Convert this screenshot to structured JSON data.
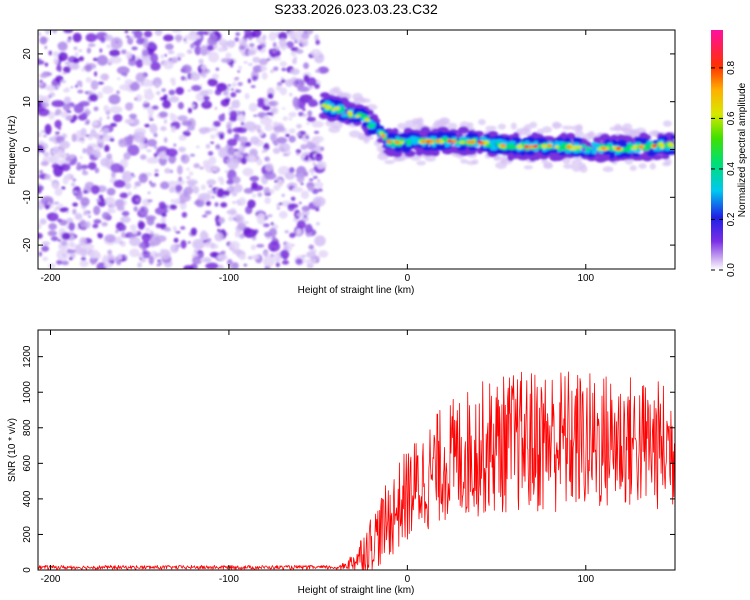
{
  "title": "S233.2026.023.03.23.C32",
  "chart_data": [
    {
      "type": "heatmap",
      "name": "spectrogram",
      "xlabel": "Height of straight line (km)",
      "ylabel": "Frequency (Hz)",
      "xlim": [
        -207,
        150
      ],
      "ylim": [
        -25,
        25
      ],
      "xticks": [
        -200,
        -100,
        0,
        100
      ],
      "xtick_labels": [
        "-200",
        "-100",
        "0",
        "100"
      ],
      "yticks": [
        -20,
        -10,
        0,
        10,
        20
      ],
      "ytick_labels": [
        "-20",
        "-10",
        "0",
        "10",
        "20"
      ],
      "noise_region": {
        "x": [
          -207,
          -47
        ],
        "y": [
          -25,
          25
        ]
      },
      "signal_track": {
        "x": [
          -47,
          -40,
          -32,
          -25,
          -20,
          -15,
          -10,
          0,
          20,
          40,
          60,
          80,
          100,
          120,
          140,
          150
        ],
        "y": [
          9,
          8.5,
          7.5,
          7,
          5,
          3.5,
          1.5,
          1.5,
          1.8,
          1.5,
          0.5,
          0.8,
          0.3,
          0.2,
          0.8,
          1.0
        ]
      },
      "colorbar": {
        "label": "Normalized spectral amplitude",
        "range": [
          0,
          0.95
        ],
        "ticks": [
          0.0,
          0.2,
          0.4,
          0.6,
          0.8
        ],
        "tick_labels": [
          "0.0",
          "0.2",
          "0.4",
          "0.6",
          "0.8"
        ]
      }
    },
    {
      "type": "line",
      "name": "snr",
      "xlabel": "Height of straight line (km)",
      "ylabel": "SNR (10 * v/v)",
      "xlim": [
        -207,
        150
      ],
      "ylim": [
        0,
        1350
      ],
      "xticks": [
        -200,
        -100,
        0,
        100
      ],
      "xtick_labels": [
        "-200",
        "-100",
        "0",
        "100"
      ],
      "yticks": [
        0,
        200,
        400,
        600,
        800,
        1000,
        1200
      ],
      "ytick_labels": [
        "0",
        "200",
        "400",
        "600",
        "800",
        "1000",
        "1200"
      ],
      "series": [
        {
          "name": "SNR",
          "color": "#ff0000",
          "envelope": {
            "x": [
              -207,
              -40,
              -35,
              -30,
              -25,
              -20,
              -15,
              -10,
              -5,
              0,
              10,
              20,
              30,
              40,
              50,
              60,
              70,
              80,
              90,
              100,
              110,
              120,
              130,
              140,
              150
            ],
            "base": [
              8,
              8,
              25,
              50,
              100,
              160,
              220,
              290,
              360,
              420,
              510,
              600,
              640,
              680,
              700,
              720,
              720,
              730,
              730,
              720,
              720,
              730,
              710,
              700,
              690
            ],
            "spread": [
              8,
              8,
              20,
              60,
              120,
              160,
              200,
              230,
              250,
              270,
              300,
              330,
              360,
              380,
              390,
              400,
              410,
              420,
              410,
              400,
              400,
              390,
              380,
              370,
              360
            ]
          }
        }
      ]
    }
  ]
}
